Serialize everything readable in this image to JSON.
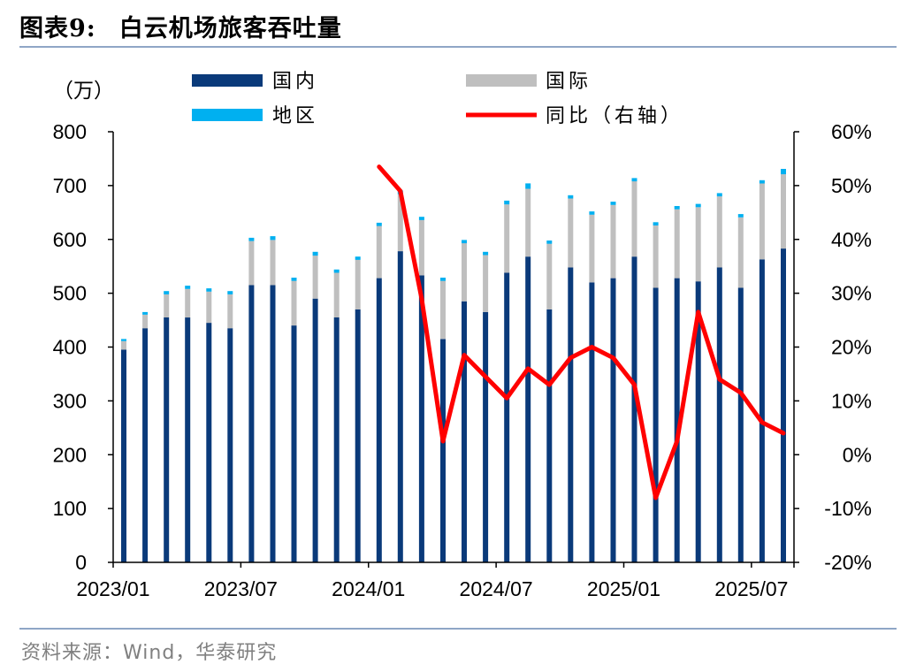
{
  "figure": {
    "title_num": "图表9:",
    "title_text": "白云机场旅客吞吐量",
    "source": "资料来源：Wind，华泰研究"
  },
  "chart_data": {
    "type": "bar",
    "stacked": true,
    "title": "白云机场旅客吞吐量",
    "ylabel_left": "（万）",
    "ylim_left": [
      0,
      800
    ],
    "yticks_left": [
      "0",
      "100",
      "200",
      "300",
      "400",
      "500",
      "600",
      "700",
      "800"
    ],
    "ylim_right": [
      -20,
      60
    ],
    "yticks_right": [
      "-20%",
      "-10%",
      "0%",
      "10%",
      "20%",
      "30%",
      "40%",
      "50%",
      "60%"
    ],
    "x_labels": [
      {
        "index": 0,
        "text": "2023/01"
      },
      {
        "index": 6,
        "text": "2023/07"
      },
      {
        "index": 12,
        "text": "2024/01"
      },
      {
        "index": 18,
        "text": "2024/07"
      },
      {
        "index": 24,
        "text": "2025/01"
      },
      {
        "index": 30,
        "text": "2025/07"
      }
    ],
    "categories": [
      "2023/01",
      "2023/02",
      "2023/03",
      "2023/04",
      "2023/05",
      "2023/06",
      "2023/07",
      "2023/08",
      "2023/09",
      "2023/10",
      "2023/11",
      "2023/12",
      "2024/01",
      "2024/02",
      "2024/03",
      "2024/04",
      "2024/05",
      "2024/06",
      "2024/07",
      "2024/08",
      "2024/09",
      "2024/10",
      "2024/11",
      "2024/12",
      "2025/01",
      "2025/02",
      "2025/03",
      "2025/04",
      "2025/05",
      "2025/06",
      "2025/07",
      "2025/08"
    ],
    "series": [
      {
        "name": "国内",
        "kind": "bar",
        "color": "#0a3a7a",
        "values": [
          395,
          435,
          455,
          455,
          445,
          435,
          515,
          515,
          440,
          490,
          455,
          470,
          528,
          578,
          533,
          415,
          485,
          465,
          538,
          568,
          470,
          548,
          520,
          528,
          568,
          510,
          528,
          522,
          548,
          510,
          563,
          583
        ]
      },
      {
        "name": "国际",
        "kind": "bar",
        "color": "#bfbfbf",
        "values": [
          16,
          25,
          43,
          53,
          58,
          63,
          82,
          84,
          83,
          80,
          83,
          92,
          97,
          106,
          103,
          108,
          108,
          106,
          127,
          126,
          122,
          128,
          126,
          136,
          140,
          116,
          128,
          138,
          132,
          131,
          141,
          138
        ]
      },
      {
        "name": "地区",
        "kind": "bar",
        "color": "#00b0f0",
        "values": [
          4,
          5,
          6,
          6,
          6,
          6,
          6,
          7,
          6,
          7,
          6,
          6,
          6,
          7,
          6,
          6,
          6,
          6,
          7,
          10,
          6,
          6,
          6,
          6,
          6,
          6,
          6,
          6,
          6,
          6,
          6,
          10
        ]
      },
      {
        "name": "同比（右轴）",
        "kind": "line",
        "axis": "right",
        "color": "#ff0000",
        "values": [
          null,
          null,
          null,
          null,
          null,
          null,
          null,
          null,
          null,
          null,
          null,
          null,
          53.5,
          49,
          29,
          2.5,
          18.5,
          14.5,
          10.5,
          16,
          13,
          18,
          20,
          18,
          13,
          -8,
          2.5,
          26.5,
          14,
          11.5,
          6,
          4
        ]
      }
    ]
  }
}
